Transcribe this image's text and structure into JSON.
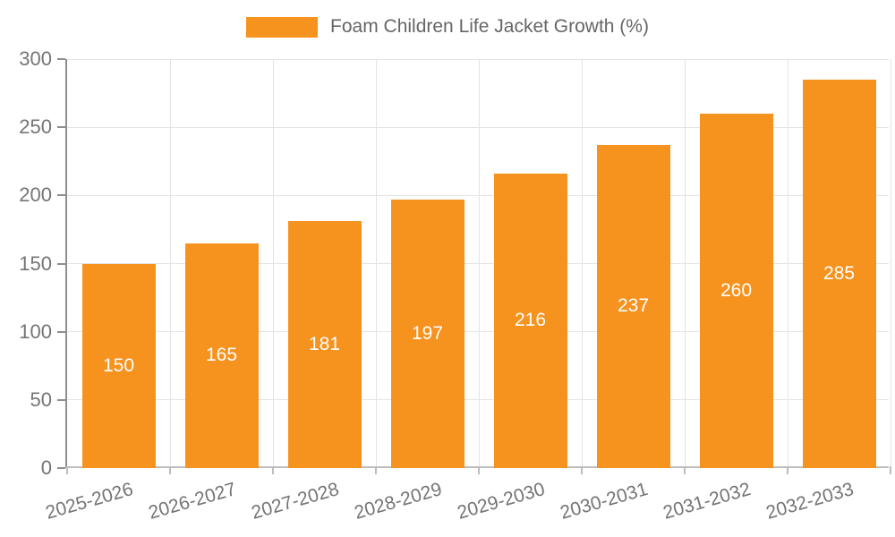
{
  "legend": {
    "label": "Foam Children Life Jacket Growth (%)",
    "swatch_color": "#F6921E"
  },
  "chart_data": {
    "type": "bar",
    "title": "Foam Children Life Jacket Growth (%)",
    "series": [
      {
        "name": "Foam Children Life Jacket Growth (%)",
        "values": [
          150,
          165,
          181,
          197,
          216,
          237,
          260,
          285
        ]
      }
    ],
    "categories": [
      "2025-2026",
      "2026-2027",
      "2027-2028",
      "2028-2029",
      "2029-2030",
      "2030-2031",
      "2031-2032",
      "2032-2033"
    ],
    "values": [
      150,
      165,
      181,
      197,
      216,
      237,
      260,
      285
    ],
    "value_labels_inside_bars": true,
    "xlabel": "",
    "ylabel": "",
    "ylim": [
      0,
      300
    ],
    "yticks": [
      0,
      50,
      100,
      150,
      200,
      250,
      300
    ],
    "grid": true,
    "legend_position": "top-center",
    "x_label_rotation_deg": -16,
    "colors": {
      "bar": "#F6921E",
      "value_label": "#FFFFFF",
      "axis_text": "#757575",
      "gridline": "#E4E4E4",
      "y_axis_line": "#8E8E8E",
      "x_axis_line": "#BDBDBD",
      "legend_text": "#666666"
    }
  }
}
